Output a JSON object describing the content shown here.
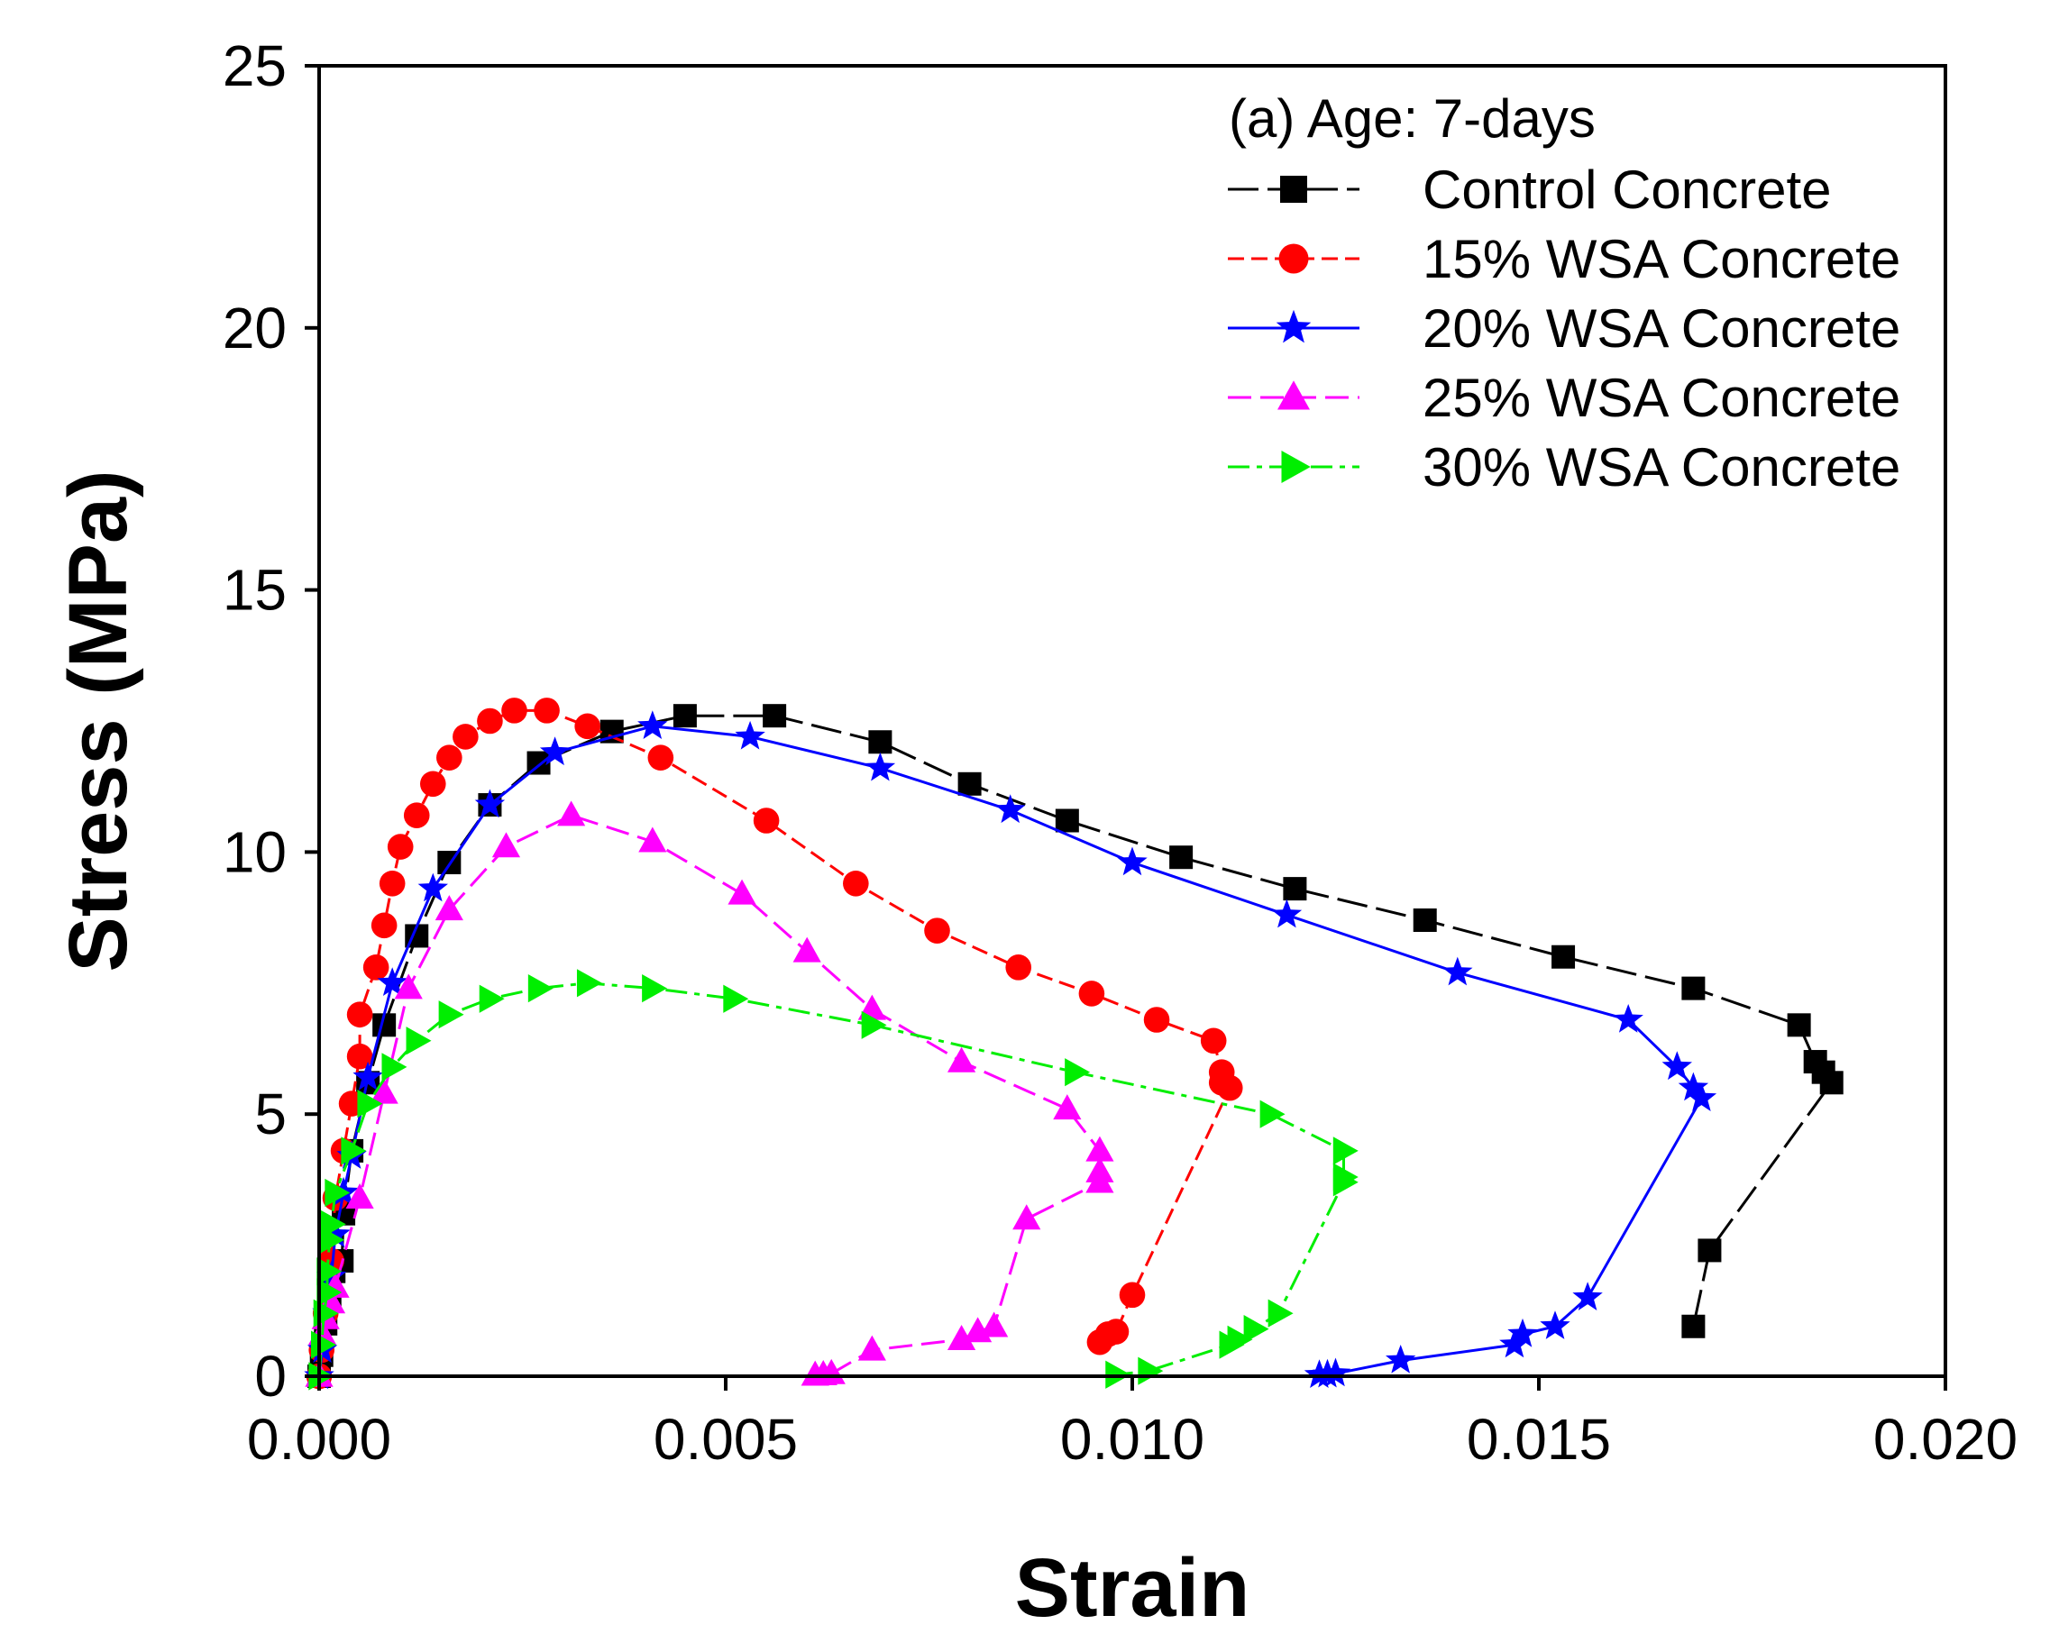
{
  "chart_data": {
    "type": "line",
    "title": "",
    "annotation": "(a) Age: 7-days",
    "xlabel": "Strain",
    "ylabel": "Stress (MPa)",
    "xlim": [
      0,
      0.02
    ],
    "ylim": [
      0,
      25
    ],
    "xticks": [
      "0.000",
      "0.005",
      "0.010",
      "0.015",
      "0.020"
    ],
    "xtick_values": [
      0,
      0.005,
      0.01,
      0.015,
      0.02
    ],
    "yticks": [
      "0",
      "5",
      "10",
      "15",
      "20",
      "25"
    ],
    "ytick_values": [
      0,
      5,
      10,
      15,
      20,
      25
    ],
    "grid": false,
    "legend_position": "top-right",
    "series": [
      {
        "name": "Control Concrete",
        "color": "#000000",
        "marker": "square",
        "dash": "long",
        "points": [
          [
            0,
            0
          ],
          [
            3e-05,
            0.4
          ],
          [
            8e-05,
            1.0
          ],
          [
            0.00013,
            1.5
          ],
          [
            0.00018,
            2.0
          ],
          [
            0.00028,
            2.2
          ],
          [
            0.0003,
            3.1
          ],
          [
            0.0004,
            4.3
          ],
          [
            0.0006,
            5.6
          ],
          [
            0.0008,
            6.7
          ],
          [
            0.0012,
            8.4
          ],
          [
            0.0016,
            9.8
          ],
          [
            0.0021,
            10.9
          ],
          [
            0.0027,
            11.7
          ],
          [
            0.0036,
            12.3
          ],
          [
            0.0045,
            12.6
          ],
          [
            0.0056,
            12.6
          ],
          [
            0.0069,
            12.1
          ],
          [
            0.008,
            11.3
          ],
          [
            0.0092,
            10.6
          ],
          [
            0.0106,
            9.9
          ],
          [
            0.012,
            9.3
          ],
          [
            0.0136,
            8.7
          ],
          [
            0.0153,
            8.0
          ],
          [
            0.0169,
            7.4
          ],
          [
            0.0182,
            6.7
          ],
          [
            0.0184,
            6.0
          ],
          [
            0.0185,
            5.8
          ],
          [
            0.0186,
            5.6
          ],
          [
            0.0171,
            2.4
          ],
          [
            0.0169,
            0.95
          ]
        ]
      },
      {
        "name": "15% WSA Concrete",
        "color": "#ff0000",
        "marker": "circle",
        "dash": "short",
        "points": [
          [
            0,
            0
          ],
          [
            3e-05,
            0.5
          ],
          [
            8e-05,
            1.2
          ],
          [
            0.00015,
            2.2
          ],
          [
            0.0002,
            3.4
          ],
          [
            0.0003,
            4.3
          ],
          [
            0.0004,
            5.2
          ],
          [
            0.0005,
            6.1
          ],
          [
            0.0005,
            6.9
          ],
          [
            0.0007,
            7.8
          ],
          [
            0.0008,
            8.6
          ],
          [
            0.0009,
            9.4
          ],
          [
            0.001,
            10.1
          ],
          [
            0.0012,
            10.7
          ],
          [
            0.0014,
            11.3
          ],
          [
            0.0016,
            11.8
          ],
          [
            0.0018,
            12.2
          ],
          [
            0.0021,
            12.5
          ],
          [
            0.0024,
            12.7
          ],
          [
            0.0028,
            12.7
          ],
          [
            0.0033,
            12.4
          ],
          [
            0.0042,
            11.8
          ],
          [
            0.0055,
            10.6
          ],
          [
            0.0066,
            9.4
          ],
          [
            0.0076,
            8.5
          ],
          [
            0.0086,
            7.8
          ],
          [
            0.0095,
            7.3
          ],
          [
            0.0103,
            6.8
          ],
          [
            0.011,
            6.4
          ],
          [
            0.0111,
            5.8
          ],
          [
            0.0111,
            5.6
          ],
          [
            0.0112,
            5.5
          ],
          [
            0.01,
            1.55
          ],
          [
            0.0098,
            0.85
          ],
          [
            0.0097,
            0.8
          ],
          [
            0.0096,
            0.65
          ]
        ]
      },
      {
        "name": "20% WSA Concrete",
        "color": "#0000ff",
        "marker": "star",
        "dash": "solid",
        "points": [
          [
            0,
            0
          ],
          [
            4e-05,
            0.5
          ],
          [
            0.0001,
            1.2
          ],
          [
            0.00015,
            1.9
          ],
          [
            0.0002,
            2.7
          ],
          [
            0.0003,
            3.5
          ],
          [
            0.0004,
            4.2
          ],
          [
            0.0006,
            5.7
          ],
          [
            0.0009,
            7.5
          ],
          [
            0.0014,
            9.3
          ],
          [
            0.0021,
            10.9
          ],
          [
            0.0029,
            11.9
          ],
          [
            0.0041,
            12.4
          ],
          [
            0.0053,
            12.2
          ],
          [
            0.0069,
            11.6
          ],
          [
            0.0085,
            10.8
          ],
          [
            0.01,
            9.8
          ],
          [
            0.0119,
            8.8
          ],
          [
            0.014,
            7.7
          ],
          [
            0.0161,
            6.8
          ],
          [
            0.0167,
            5.9
          ],
          [
            0.0169,
            5.5
          ],
          [
            0.017,
            5.3
          ],
          [
            0.0156,
            1.5
          ],
          [
            0.0152,
            0.95
          ],
          [
            0.0148,
            0.8
          ],
          [
            0.0147,
            0.6
          ],
          [
            0.0133,
            0.3
          ],
          [
            0.0125,
            0.05
          ],
          [
            0.0124,
            0.03
          ],
          [
            0.0123,
            0.02
          ]
        ]
      },
      {
        "name": "25% WSA Concrete",
        "color": "#ff00ff",
        "marker": "triangle-up",
        "dash": "dashed",
        "points": [
          [
            0,
            0
          ],
          [
            4e-05,
            0.8
          ],
          [
            8e-05,
            1.1
          ],
          [
            0.00015,
            1.4
          ],
          [
            0.0002,
            1.7
          ],
          [
            0.0005,
            3.4
          ],
          [
            0.0008,
            5.4
          ],
          [
            0.0011,
            7.4
          ],
          [
            0.0016,
            8.9
          ],
          [
            0.0023,
            10.1
          ],
          [
            0.0031,
            10.7
          ],
          [
            0.0041,
            10.2
          ],
          [
            0.0052,
            9.2
          ],
          [
            0.006,
            8.1
          ],
          [
            0.0068,
            7.0
          ],
          [
            0.0079,
            6.0
          ],
          [
            0.0092,
            5.1
          ],
          [
            0.0096,
            4.3
          ],
          [
            0.0096,
            3.9
          ],
          [
            0.0096,
            3.7
          ],
          [
            0.0087,
            3.0
          ],
          [
            0.0083,
            0.95
          ],
          [
            0.0081,
            0.85
          ],
          [
            0.0079,
            0.7
          ],
          [
            0.0068,
            0.5
          ],
          [
            0.0063,
            0.05
          ],
          [
            0.0062,
            0.03
          ],
          [
            0.0061,
            0.02
          ]
        ]
      },
      {
        "name": "30% WSA Concrete",
        "color": "#00ee00",
        "marker": "triangle-right",
        "dash": "dashdot",
        "points": [
          [
            0,
            0
          ],
          [
            3e-05,
            0.6
          ],
          [
            6e-05,
            1.2
          ],
          [
            0.0001,
            1.6
          ],
          [
            0.0001,
            2.0
          ],
          [
            0.00013,
            2.6
          ],
          [
            0.00015,
            2.9
          ],
          [
            0.0002,
            3.5
          ],
          [
            0.0004,
            4.3
          ],
          [
            0.0006,
            5.2
          ],
          [
            0.0009,
            5.9
          ],
          [
            0.0012,
            6.4
          ],
          [
            0.0016,
            6.9
          ],
          [
            0.0021,
            7.2
          ],
          [
            0.0027,
            7.4
          ],
          [
            0.0033,
            7.5
          ],
          [
            0.0041,
            7.4
          ],
          [
            0.0051,
            7.2
          ],
          [
            0.0068,
            6.7
          ],
          [
            0.0093,
            5.8
          ],
          [
            0.0117,
            5.0
          ],
          [
            0.0126,
            4.3
          ],
          [
            0.0126,
            3.8
          ],
          [
            0.0126,
            3.7
          ],
          [
            0.0118,
            1.2
          ],
          [
            0.0115,
            0.9
          ],
          [
            0.0113,
            0.7
          ],
          [
            0.0112,
            0.6
          ],
          [
            0.0102,
            0.1
          ],
          [
            0.0098,
            0.03
          ]
        ]
      }
    ]
  }
}
